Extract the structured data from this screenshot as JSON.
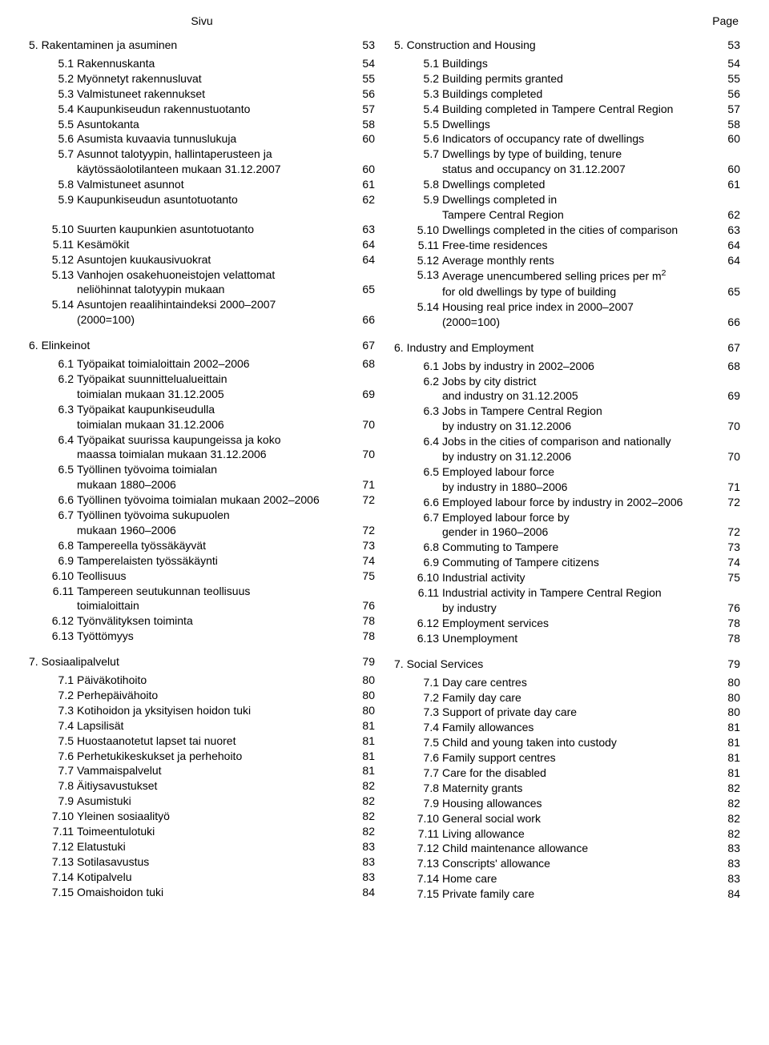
{
  "headers": {
    "left": "Sivu",
    "right": "Page"
  },
  "left": [
    {
      "type": "section",
      "num": "5.",
      "title": "Rakentaminen ja asuminen",
      "page": "53"
    },
    {
      "type": "entry",
      "num": "5.1",
      "label": "Rakennuskanta",
      "page": "54"
    },
    {
      "type": "entry",
      "num": "5.2",
      "label": "Myönnetyt rakennusluvat",
      "page": "55"
    },
    {
      "type": "entry",
      "num": "5.3",
      "label": "Valmistuneet rakennukset",
      "page": "56"
    },
    {
      "type": "entry",
      "num": "5.4",
      "label": "Kaupunkiseudun rakennustuotanto",
      "page": "57"
    },
    {
      "type": "entry",
      "num": "5.5",
      "label": "Asuntokanta",
      "page": "58"
    },
    {
      "type": "entry",
      "num": "5.6",
      "label": "Asumista kuvaavia tunnuslukuja",
      "page": "60"
    },
    {
      "type": "entry",
      "num": "5.7",
      "label": "Asunnot talotyypin, hallintaperusteen ja",
      "page": ""
    },
    {
      "type": "cont",
      "label": "käytössäolotilanteen mukaan 31.12.2007",
      "page": "60"
    },
    {
      "type": "entry",
      "num": "5.8",
      "label": "Valmistuneet asunnot",
      "page": "61"
    },
    {
      "type": "entry",
      "num": "5.9",
      "label": "Kaupunkiseudun asuntotuotanto",
      "page": "62"
    },
    {
      "type": "blank"
    },
    {
      "type": "entry",
      "num": "5.10",
      "label": "Suurten kaupunkien asuntotuotanto",
      "page": "63"
    },
    {
      "type": "entry",
      "num": "5.11",
      "label": "Kesämökit",
      "page": "64"
    },
    {
      "type": "entry",
      "num": "5.12",
      "label": "Asuntojen kuukausivuokrat",
      "page": "64"
    },
    {
      "type": "entry",
      "num": "5.13",
      "label": "Vanhojen osakehuoneistojen velattomat",
      "page": ""
    },
    {
      "type": "cont",
      "label": "neliöhinnat talotyypin mukaan",
      "page": "65"
    },
    {
      "type": "entry",
      "num": "5.14",
      "label": "Asuntojen reaalihintaindeksi 2000–2007",
      "page": ""
    },
    {
      "type": "cont",
      "label": "(2000=100)",
      "page": "66"
    },
    {
      "type": "section",
      "num": "6.",
      "title": "Elinkeinot",
      "page": "67"
    },
    {
      "type": "entry",
      "num": "6.1",
      "label": "Työpaikat toimialoittain 2002–2006",
      "page": "68"
    },
    {
      "type": "entry",
      "num": "6.2",
      "label": "Työpaikat suunnittelualueittain",
      "page": ""
    },
    {
      "type": "cont",
      "label": "toimialan mukaan 31.12.2005",
      "page": "69"
    },
    {
      "type": "entry",
      "num": "6.3",
      "label": "Työpaikat kaupunkiseudulla",
      "page": ""
    },
    {
      "type": "cont",
      "label": "toimialan mukaan 31.12.2006",
      "page": "70"
    },
    {
      "type": "entry",
      "num": "6.4",
      "label": "Työpaikat suurissa kaupungeissa ja koko",
      "page": ""
    },
    {
      "type": "cont",
      "label": "maassa toimialan mukaan 31.12.2006",
      "page": "70"
    },
    {
      "type": "entry",
      "num": "6.5",
      "label": "Työllinen työvoima toimialan",
      "page": ""
    },
    {
      "type": "cont",
      "label": "mukaan 1880–2006",
      "page": "71"
    },
    {
      "type": "entry",
      "num": "6.6",
      "label": "Työllinen työvoima toimialan mukaan 2002–2006",
      "page": "72"
    },
    {
      "type": "entry",
      "num": "6.7",
      "label": "Työllinen työvoima sukupuolen",
      "page": ""
    },
    {
      "type": "cont",
      "label": "mukaan 1960–2006",
      "page": "72"
    },
    {
      "type": "entry",
      "num": "6.8",
      "label": "Tampereella työssäkäyvät",
      "page": "73"
    },
    {
      "type": "entry",
      "num": "6.9",
      "label": "Tamperelaisten työssäkäynti",
      "page": "74"
    },
    {
      "type": "entry",
      "num": "6.10",
      "label": "Teollisuus",
      "page": "75"
    },
    {
      "type": "entry",
      "num": "6.11",
      "label": "Tampereen seutukunnan teollisuus",
      "page": ""
    },
    {
      "type": "cont",
      "label": "toimialoittain",
      "page": "76"
    },
    {
      "type": "entry",
      "num": "6.12",
      "label": "Työnvälityksen toiminta",
      "page": "78"
    },
    {
      "type": "entry",
      "num": "6.13",
      "label": "Työttömyys",
      "page": "78"
    },
    {
      "type": "section",
      "num": "7.",
      "title": "Sosiaalipalvelut",
      "page": "79"
    },
    {
      "type": "entry",
      "num": "7.1",
      "label": "Päiväkotihoito",
      "page": "80"
    },
    {
      "type": "entry",
      "num": "7.2",
      "label": "Perhepäivähoito",
      "page": "80"
    },
    {
      "type": "entry",
      "num": "7.3",
      "label": "Kotihoidon ja yksityisen hoidon tuki",
      "page": "80"
    },
    {
      "type": "entry",
      "num": "7.4",
      "label": "Lapsilisät",
      "page": "81"
    },
    {
      "type": "entry",
      "num": "7.5",
      "label": "Huostaanotetut lapset tai nuoret",
      "page": "81"
    },
    {
      "type": "entry",
      "num": "7.6",
      "label": "Perhetukikeskukset ja perhehoito",
      "page": "81"
    },
    {
      "type": "entry",
      "num": "7.7",
      "label": "Vammaispalvelut",
      "page": "81"
    },
    {
      "type": "entry",
      "num": "7.8",
      "label": "Äitiysavustukset",
      "page": "82"
    },
    {
      "type": "entry",
      "num": "7.9",
      "label": "Asumistuki",
      "page": "82"
    },
    {
      "type": "entry",
      "num": "7.10",
      "label": "Yleinen sosiaalityö",
      "page": "82"
    },
    {
      "type": "entry",
      "num": "7.11",
      "label": "Toimeentulotuki",
      "page": "82"
    },
    {
      "type": "entry",
      "num": "7.12",
      "label": "Elatustuki",
      "page": "83"
    },
    {
      "type": "entry",
      "num": "7.13",
      "label": "Sotilasavustus",
      "page": "83"
    },
    {
      "type": "entry",
      "num": "7.14",
      "label": "Kotipalvelu",
      "page": "83"
    },
    {
      "type": "entry",
      "num": "7.15",
      "label": "Omaishoidon tuki",
      "page": "84"
    }
  ],
  "right": [
    {
      "type": "section",
      "num": "5.",
      "title": "Construction and Housing",
      "page": "53"
    },
    {
      "type": "entry",
      "num": "5.1",
      "label": "Buildings",
      "page": "54"
    },
    {
      "type": "entry",
      "num": "5.2",
      "label": "Building permits granted",
      "page": "55"
    },
    {
      "type": "entry",
      "num": "5.3",
      "label": "Buildings completed",
      "page": "56"
    },
    {
      "type": "entry",
      "num": "5.4",
      "label": "Building completed in Tampere Central Region",
      "page": "57"
    },
    {
      "type": "entry",
      "num": "5.5",
      "label": "Dwellings",
      "page": "58"
    },
    {
      "type": "entry",
      "num": "5.6",
      "label": "Indicators of occupancy rate of dwellings",
      "page": "60"
    },
    {
      "type": "entry",
      "num": "5.7",
      "label": "Dwellings by type of building, tenure",
      "page": ""
    },
    {
      "type": "cont",
      "label": "status and occupancy on 31.12.2007",
      "page": "60"
    },
    {
      "type": "entry",
      "num": "5.8",
      "label": "Dwellings completed",
      "page": "61"
    },
    {
      "type": "entry",
      "num": "5.9",
      "label": "Dwellings completed in",
      "page": ""
    },
    {
      "type": "cont",
      "label": "Tampere Central Region",
      "page": "62"
    },
    {
      "type": "entry",
      "num": "5.10",
      "label": "Dwellings completed in the cities of comparison",
      "page": "63"
    },
    {
      "type": "entry",
      "num": "5.11",
      "label": "Free-time residences",
      "page": "64"
    },
    {
      "type": "entry",
      "num": "5.12",
      "label": "Average monthly rents",
      "page": "64"
    },
    {
      "type": "entry",
      "num": "5.13",
      "label": "Average unencumbered selling prices per m",
      "sup": "2",
      "page": ""
    },
    {
      "type": "cont",
      "label": "for old dwellings by type of building",
      "page": "65"
    },
    {
      "type": "entry",
      "num": "5.14",
      "label": "Housing real price index in 2000–2007",
      "page": ""
    },
    {
      "type": "cont",
      "label": "(2000=100)",
      "page": "66"
    },
    {
      "type": "section",
      "num": "6.",
      "title": "Industry and Employment",
      "page": "67"
    },
    {
      "type": "entry",
      "num": "6.1",
      "label": "Jobs by industry in 2002–2006",
      "page": "68"
    },
    {
      "type": "entry",
      "num": "6.2",
      "label": "Jobs by city district",
      "page": ""
    },
    {
      "type": "cont",
      "label": "and industry on 31.12.2005",
      "page": "69"
    },
    {
      "type": "entry",
      "num": "6.3",
      "label": "Jobs in Tampere Central Region",
      "page": ""
    },
    {
      "type": "cont",
      "label": "by industry on 31.12.2006",
      "page": "70"
    },
    {
      "type": "entry",
      "num": "6.4",
      "label": "Jobs in the cities of comparison and nationally",
      "page": ""
    },
    {
      "type": "cont",
      "label": "by industry on 31.12.2006",
      "page": "70"
    },
    {
      "type": "entry",
      "num": "6.5",
      "label": "Employed labour force",
      "page": ""
    },
    {
      "type": "cont",
      "label": "by industry in 1880–2006",
      "page": "71"
    },
    {
      "type": "entry",
      "num": "6.6",
      "label": "Employed labour force by industry in 2002–2006",
      "page": "72"
    },
    {
      "type": "entry",
      "num": "6.7",
      "label": "Employed labour force by",
      "page": ""
    },
    {
      "type": "cont",
      "label": "gender in 1960–2006",
      "page": "72"
    },
    {
      "type": "entry",
      "num": "6.8",
      "label": "Commuting to Tampere",
      "page": "73"
    },
    {
      "type": "entry",
      "num": "6.9",
      "label": "Commuting of Tampere citizens",
      "page": "74"
    },
    {
      "type": "entry",
      "num": "6.10",
      "label": "Industrial activity",
      "page": "75"
    },
    {
      "type": "entry",
      "num": "6.11",
      "label": "Industrial activity in Tampere Central Region",
      "page": ""
    },
    {
      "type": "cont",
      "label": "by industry",
      "page": "76"
    },
    {
      "type": "entry",
      "num": "6.12",
      "label": "Employment services",
      "page": "78"
    },
    {
      "type": "entry",
      "num": "6.13",
      "label": "Unemployment",
      "page": "78"
    },
    {
      "type": "section",
      "num": "7.",
      "title": "Social Services",
      "page": "79"
    },
    {
      "type": "entry",
      "num": "7.1",
      "label": "Day care centres",
      "page": "80"
    },
    {
      "type": "entry",
      "num": "7.2",
      "label": "Family day care",
      "page": "80"
    },
    {
      "type": "entry",
      "num": "7.3",
      "label": "Support of private day care",
      "page": "80"
    },
    {
      "type": "entry",
      "num": "7.4",
      "label": "Family allowances",
      "page": "81"
    },
    {
      "type": "entry",
      "num": "7.5",
      "label": "Child and young taken into custody",
      "page": "81"
    },
    {
      "type": "entry",
      "num": "7.6",
      "label": "Family support centres",
      "page": "81"
    },
    {
      "type": "entry",
      "num": "7.7",
      "label": "Care for the disabled",
      "page": "81"
    },
    {
      "type": "entry",
      "num": "7.8",
      "label": "Maternity grants",
      "page": "82"
    },
    {
      "type": "entry",
      "num": "7.9",
      "label": "Housing allowances",
      "page": "82"
    },
    {
      "type": "entry",
      "num": "7.10",
      "label": "General social work",
      "page": "82"
    },
    {
      "type": "entry",
      "num": "7.11",
      "label": "Living allowance",
      "page": "82"
    },
    {
      "type": "entry",
      "num": "7.12",
      "label": "Child maintenance allowance",
      "page": "83"
    },
    {
      "type": "entry",
      "num": "7.13",
      "label": "Conscripts' allowance",
      "page": "83"
    },
    {
      "type": "entry",
      "num": "7.14",
      "label": "Home care",
      "page": "83"
    },
    {
      "type": "entry",
      "num": "7.15",
      "label": "Private family care",
      "page": "84"
    }
  ]
}
